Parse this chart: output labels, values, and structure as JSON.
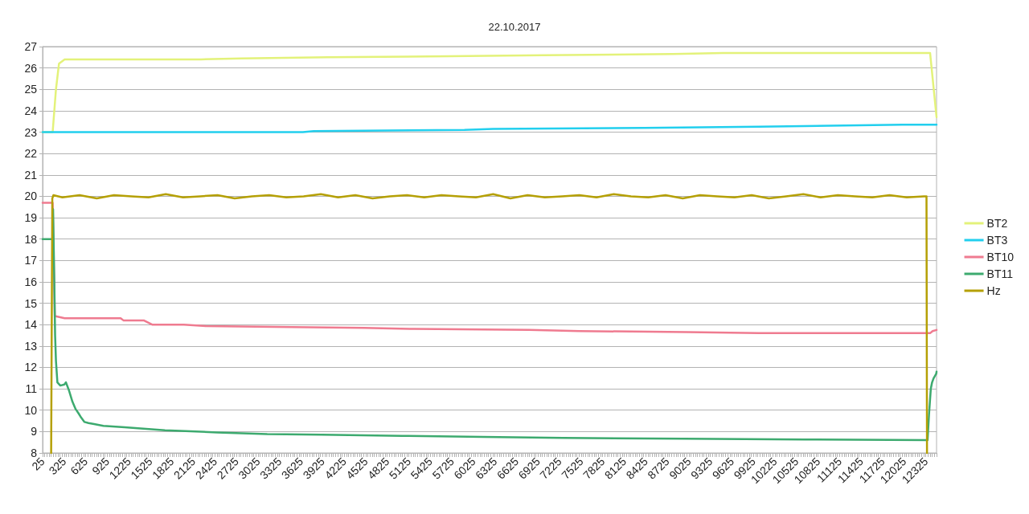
{
  "chart_data": {
    "type": "line",
    "title": "22.10.2017",
    "xlim": [
      25,
      12475
    ],
    "xticks": [
      25,
      325,
      625,
      925,
      1225,
      1525,
      1825,
      2125,
      2425,
      2725,
      3025,
      3325,
      3625,
      3925,
      4225,
      4525,
      4825,
      5125,
      5425,
      5725,
      6025,
      6325,
      6625,
      6925,
      7225,
      7525,
      7825,
      8125,
      8425,
      8725,
      9025,
      9325,
      9625,
      9925,
      10225,
      10525,
      10825,
      11125,
      11425,
      11725,
      12025,
      12325
    ],
    "ylim": [
      8,
      27
    ],
    "yticks": [
      8,
      9,
      10,
      11,
      12,
      13,
      14,
      15,
      16,
      17,
      18,
      19,
      20,
      21,
      22,
      23,
      24,
      25,
      26,
      27
    ],
    "grid": "y",
    "legend": "right",
    "marker": "none",
    "series": [
      {
        "name": "BT2",
        "color": "#e3f27a",
        "x": [
          25,
          165,
          211,
          253,
          332,
          2230,
          2800,
          4000,
          5700,
          7000,
          8800,
          9500,
          12385,
          12475
        ],
        "values": [
          23.0,
          23.0,
          25.0,
          26.2,
          26.4,
          26.4,
          26.45,
          26.5,
          26.55,
          26.6,
          26.65,
          26.7,
          26.7,
          23.7
        ]
      },
      {
        "name": "BT3",
        "color": "#22cfee",
        "x": [
          25,
          3650,
          3800,
          5900,
          6300,
          8400,
          10000,
          11000,
          12000,
          12475
        ],
        "values": [
          23.0,
          23.0,
          23.05,
          23.1,
          23.15,
          23.2,
          23.25,
          23.3,
          23.35,
          23.35
        ]
      },
      {
        "name": "BT10",
        "color": "#ef7b90",
        "x": [
          25,
          165,
          195,
          332,
          1112,
          1150,
          1433,
          1550,
          1993,
          2300,
          3000,
          4500,
          5200,
          6800,
          7500,
          9000,
          10000,
          12385,
          12420,
          12475
        ],
        "values": [
          19.7,
          19.7,
          14.4,
          14.3,
          14.3,
          14.2,
          14.2,
          14.0,
          14.0,
          13.93,
          13.9,
          13.85,
          13.8,
          13.75,
          13.7,
          13.65,
          13.6,
          13.6,
          13.7,
          13.75
        ]
      },
      {
        "name": "BT11",
        "color": "#3daa6f",
        "x": [
          25,
          164,
          171,
          188,
          199,
          211,
          231,
          272,
          328,
          350,
          395,
          440,
          485,
          526,
          563,
          608,
          664,
          742,
          871,
          1168,
          1729,
          2458,
          3153,
          3915,
          5036,
          6157,
          7278,
          8960,
          10641,
          12350,
          12370,
          12395,
          12413,
          12435,
          12470,
          12475
        ],
        "values": [
          18.0,
          18.0,
          19.4,
          16.0,
          13.5,
          12.3,
          11.3,
          11.15,
          11.2,
          11.3,
          10.9,
          10.4,
          10.05,
          9.85,
          9.65,
          9.45,
          9.4,
          9.35,
          9.27,
          9.2,
          9.06,
          8.96,
          8.88,
          8.85,
          8.8,
          8.75,
          8.7,
          8.67,
          8.63,
          8.6,
          9.8,
          11.0,
          11.3,
          11.5,
          11.7,
          11.8
        ]
      },
      {
        "name": "Hz",
        "color": "#b5a005",
        "x": [
          144,
          160,
          175,
          300,
          540,
          780,
          1020,
          1260,
          1500,
          1740,
          1980,
          2220,
          2460,
          2700,
          2940,
          3180,
          3420,
          3660,
          3900,
          4140,
          4380,
          4620,
          4860,
          5100,
          5340,
          5580,
          5820,
          6060,
          6300,
          6540,
          6780,
          7020,
          7260,
          7500,
          7740,
          7980,
          8220,
          8460,
          8700,
          8940,
          9180,
          9420,
          9660,
          9900,
          10140,
          10380,
          10620,
          10860,
          11100,
          11340,
          11580,
          11820,
          12060,
          12300,
          12335,
          12342
        ],
        "values": [
          8,
          19.9,
          20.05,
          19.95,
          20.05,
          19.9,
          20.05,
          20.0,
          19.95,
          20.1,
          19.95,
          20.0,
          20.05,
          19.9,
          20.0,
          20.05,
          19.95,
          20.0,
          20.1,
          19.95,
          20.05,
          19.9,
          20.0,
          20.05,
          19.95,
          20.05,
          20.0,
          19.95,
          20.1,
          19.9,
          20.05,
          19.95,
          20.0,
          20.05,
          19.95,
          20.1,
          20.0,
          19.95,
          20.05,
          19.9,
          20.05,
          20.0,
          19.95,
          20.05,
          19.9,
          20.0,
          20.1,
          19.95,
          20.05,
          20.0,
          19.95,
          20.05,
          19.95,
          20.0,
          20.0,
          8
        ]
      }
    ]
  }
}
